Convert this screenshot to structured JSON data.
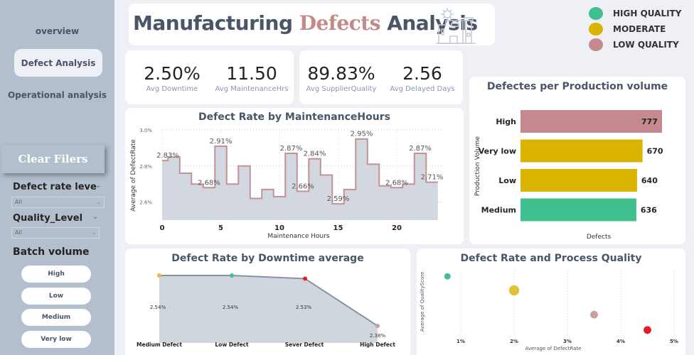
{
  "sidebar": {
    "nav": [
      {
        "label": "overview",
        "active": false
      },
      {
        "label": "Defect Analysis",
        "active": true
      },
      {
        "label": "Operational analysis",
        "active": false
      }
    ],
    "clear_button": "Clear Filers",
    "slicers": [
      {
        "title": "Defect rate leve",
        "value": "All"
      },
      {
        "title": "Quality_Level",
        "value": "All"
      }
    ],
    "batch_volume": {
      "title": "Batch volume",
      "options": [
        "High",
        "Low",
        "Medium",
        "Very low"
      ]
    }
  },
  "header": {
    "title_part1": "Manufacturing ",
    "title_accent": "Defects",
    "title_part2": " Analysis",
    "icon": "factory-icon"
  },
  "legend": [
    {
      "label": "HIGH QUALITY",
      "color": "#40c08f"
    },
    {
      "label": "MODERATE",
      "color": "#d9b300"
    },
    {
      "label": "LOW QUALITY",
      "color": "#c48a8f"
    }
  ],
  "kpis": [
    {
      "value": "2.50%",
      "label": "Avg Downtime"
    },
    {
      "value": "11.50",
      "label": "Avg MaintenanceHrs"
    },
    {
      "value": "89.83%",
      "label": "Avg SupplierQuality"
    },
    {
      "value": "2.56",
      "label": "Avg Delayed Days"
    }
  ],
  "colors": {
    "high_quality": "#40c08f",
    "moderate": "#d9b300",
    "low_quality": "#c48a8f",
    "severe": "#e8192c",
    "step_line": "#c49294",
    "area_fill": "#d3d8e0"
  },
  "chart_data": [
    {
      "id": "maintenance",
      "type": "area",
      "title": "Defect Rate by MaintenanceHours",
      "xlabel": "Maintenance Hours",
      "ylabel": "Average of DefectRate",
      "x": [
        0,
        1,
        2,
        3,
        4,
        5,
        6,
        7,
        8,
        9,
        10,
        11,
        12,
        13,
        14,
        15,
        16,
        17,
        18,
        19,
        20,
        21,
        22,
        23
      ],
      "values": [
        2.83,
        2.85,
        2.76,
        2.7,
        2.68,
        2.91,
        2.7,
        2.8,
        2.62,
        2.67,
        2.63,
        2.87,
        2.66,
        2.84,
        2.75,
        2.59,
        2.67,
        2.95,
        2.81,
        2.69,
        2.68,
        2.7,
        2.87,
        2.71
      ],
      "labels": {
        "0": "2.83%",
        "4": "2.68%",
        "5": "2.91%",
        "11": "2.87%",
        "12": "2.66%",
        "13": "2.84%",
        "15": "2.59%",
        "17": "2.95%",
        "20": "2.68%",
        "22": "2.87%",
        "23": "2.71%"
      },
      "xticks": [
        0,
        5,
        10,
        15,
        20
      ],
      "yticks": [
        "2.6%",
        "2.8%",
        "3.0%"
      ],
      "ylim": [
        2.5,
        3.0
      ],
      "grid": true
    },
    {
      "id": "volume",
      "type": "bar",
      "title": "Defectes per Production volume",
      "xlabel": "Defects",
      "ylabel": "Production Volume",
      "categories": [
        "High",
        "Very low",
        "Low",
        "Medium"
      ],
      "values": [
        777,
        670,
        640,
        636
      ],
      "bar_colors": [
        "#c48a8f",
        "#d9b300",
        "#d9b300",
        "#40c08f"
      ]
    },
    {
      "id": "downtime",
      "type": "line",
      "title": "Defect Rate by Downtime average",
      "categories": [
        "Medium Defect",
        "Low Defect",
        "Sever Defect",
        "High Defect"
      ],
      "values": [
        2.54,
        2.54,
        2.53,
        2.38
      ],
      "labels": [
        "2.54%",
        "2.54%",
        "2.53%",
        "2.38%"
      ],
      "point_colors": [
        "#e8b84a",
        "#40c08f",
        "#e8192c",
        "#c9a0a0"
      ]
    },
    {
      "id": "quality",
      "type": "scatter",
      "title": "Defect Rate and Process Quality",
      "xlabel": "Average of DefectRate",
      "ylabel": "Average of QualityScore",
      "xticks": [
        "1%",
        "2%",
        "3%",
        "4%",
        "5%"
      ],
      "xlim": [
        0.5,
        5.0
      ],
      "points": [
        {
          "x": 0.75,
          "y": 0.92,
          "size": 1,
          "color": "#40c08f"
        },
        {
          "x": 2.0,
          "y": 0.7,
          "size": 1.6,
          "color": "#e0c23a"
        },
        {
          "x": 3.5,
          "y": 0.32,
          "size": 1.2,
          "color": "#c9a0a0"
        },
        {
          "x": 4.5,
          "y": 0.08,
          "size": 1.2,
          "color": "#e8192c"
        }
      ]
    }
  ]
}
